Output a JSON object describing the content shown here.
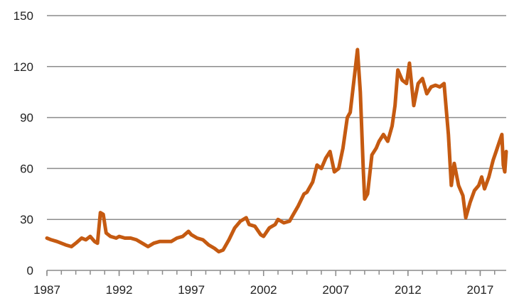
{
  "chart_data": {
    "type": "line",
    "title": "",
    "xlabel": "",
    "ylabel": "",
    "xlim": [
      1987,
      2018.8
    ],
    "ylim": [
      0,
      150
    ],
    "grid": true,
    "legend": "none",
    "x_ticks": [
      {
        "value": 1987,
        "label": "1987"
      },
      {
        "value": 1992,
        "label": "1992"
      },
      {
        "value": 1997,
        "label": "1997"
      },
      {
        "value": 2002,
        "label": "2002"
      },
      {
        "value": 2007,
        "label": "2007"
      },
      {
        "value": 2012,
        "label": "2012"
      },
      {
        "value": 2017,
        "label": "2017"
      }
    ],
    "y_ticks": [
      {
        "value": 0,
        "label": "0"
      },
      {
        "value": 30,
        "label": "30"
      },
      {
        "value": 60,
        "label": "60"
      },
      {
        "value": 90,
        "label": "90"
      },
      {
        "value": 120,
        "label": "120"
      },
      {
        "value": 150,
        "label": "150"
      }
    ],
    "series": [
      {
        "color": "#c55a11",
        "points": [
          [
            1987.0,
            19
          ],
          [
            1987.3,
            18
          ],
          [
            1987.7,
            17
          ],
          [
            1988.0,
            16
          ],
          [
            1988.3,
            15
          ],
          [
            1988.7,
            14
          ],
          [
            1989.0,
            16
          ],
          [
            1989.4,
            19
          ],
          [
            1989.7,
            18
          ],
          [
            1990.0,
            20
          ],
          [
            1990.3,
            17
          ],
          [
            1990.5,
            16
          ],
          [
            1990.7,
            34
          ],
          [
            1990.9,
            33
          ],
          [
            1991.1,
            22
          ],
          [
            1991.4,
            20
          ],
          [
            1991.8,
            19
          ],
          [
            1992.0,
            20
          ],
          [
            1992.4,
            19
          ],
          [
            1992.8,
            19
          ],
          [
            1993.2,
            18
          ],
          [
            1993.6,
            16
          ],
          [
            1994.0,
            14
          ],
          [
            1994.4,
            16
          ],
          [
            1994.8,
            17
          ],
          [
            1995.2,
            17
          ],
          [
            1995.6,
            17
          ],
          [
            1996.0,
            19
          ],
          [
            1996.4,
            20
          ],
          [
            1996.8,
            23
          ],
          [
            1997.0,
            21
          ],
          [
            1997.4,
            19
          ],
          [
            1997.8,
            18
          ],
          [
            1998.2,
            15
          ],
          [
            1998.6,
            13
          ],
          [
            1998.9,
            11
          ],
          [
            1999.2,
            12
          ],
          [
            1999.6,
            18
          ],
          [
            2000.0,
            25
          ],
          [
            2000.4,
            29
          ],
          [
            2000.8,
            31
          ],
          [
            2001.0,
            27
          ],
          [
            2001.4,
            26
          ],
          [
            2001.8,
            21
          ],
          [
            2002.0,
            20
          ],
          [
            2002.4,
            25
          ],
          [
            2002.8,
            27
          ],
          [
            2003.0,
            30
          ],
          [
            2003.4,
            28
          ],
          [
            2003.8,
            29
          ],
          [
            2004.0,
            32
          ],
          [
            2004.4,
            38
          ],
          [
            2004.8,
            45
          ],
          [
            2005.0,
            46
          ],
          [
            2005.4,
            52
          ],
          [
            2005.7,
            62
          ],
          [
            2006.0,
            60
          ],
          [
            2006.3,
            66
          ],
          [
            2006.6,
            70
          ],
          [
            2006.9,
            58
          ],
          [
            2007.2,
            60
          ],
          [
            2007.5,
            72
          ],
          [
            2007.8,
            90
          ],
          [
            2008.0,
            93
          ],
          [
            2008.3,
            115
          ],
          [
            2008.5,
            130
          ],
          [
            2008.7,
            105
          ],
          [
            2008.9,
            60
          ],
          [
            2009.0,
            42
          ],
          [
            2009.2,
            45
          ],
          [
            2009.5,
            68
          ],
          [
            2009.8,
            72
          ],
          [
            2010.0,
            76
          ],
          [
            2010.3,
            80
          ],
          [
            2010.6,
            76
          ],
          [
            2010.9,
            85
          ],
          [
            2011.1,
            97
          ],
          [
            2011.3,
            118
          ],
          [
            2011.6,
            112
          ],
          [
            2011.9,
            110
          ],
          [
            2012.1,
            122
          ],
          [
            2012.4,
            97
          ],
          [
            2012.7,
            110
          ],
          [
            2013.0,
            113
          ],
          [
            2013.3,
            104
          ],
          [
            2013.6,
            108
          ],
          [
            2013.9,
            109
          ],
          [
            2014.2,
            108
          ],
          [
            2014.5,
            110
          ],
          [
            2014.8,
            80
          ],
          [
            2015.0,
            50
          ],
          [
            2015.2,
            63
          ],
          [
            2015.5,
            50
          ],
          [
            2015.8,
            44
          ],
          [
            2016.0,
            31
          ],
          [
            2016.3,
            40
          ],
          [
            2016.6,
            47
          ],
          [
            2016.9,
            50
          ],
          [
            2017.1,
            55
          ],
          [
            2017.3,
            48
          ],
          [
            2017.6,
            55
          ],
          [
            2017.9,
            65
          ],
          [
            2018.1,
            70
          ],
          [
            2018.3,
            75
          ],
          [
            2018.5,
            80
          ],
          [
            2018.6,
            62
          ],
          [
            2018.7,
            58
          ],
          [
            2018.8,
            70
          ]
        ]
      }
    ]
  }
}
